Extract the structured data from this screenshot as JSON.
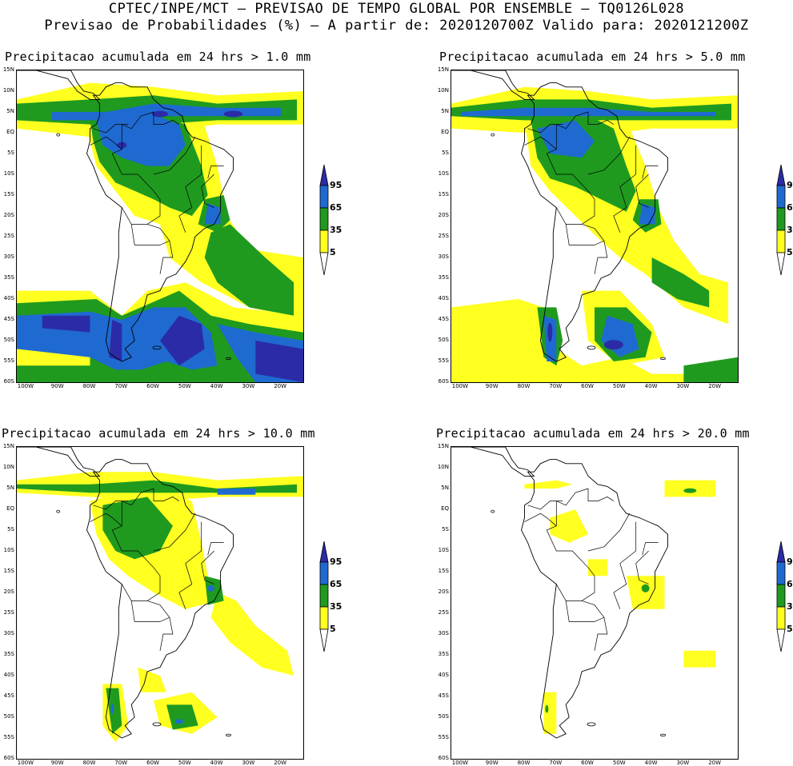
{
  "header": {
    "line1": "CPTEC/INPE/MCT – PREVISAO DE TEMPO GLOBAL POR ENSEMBLE – TQ0126L028",
    "line2": "Previsao de Probabilidades (%) –  A partir de: 2020120700Z  Valido para: 2020121200Z"
  },
  "axes": {
    "lat_labels": [
      "15N",
      "10N",
      "5N",
      "EQ",
      "5S",
      "10S",
      "15S",
      "20S",
      "25S",
      "30S",
      "35S",
      "40S",
      "45S",
      "50S",
      "55S",
      "60S"
    ],
    "lon_labels": [
      "100W",
      "90W",
      "80W",
      "70W",
      "60W",
      "50W",
      "40W",
      "30W",
      "20W"
    ]
  },
  "colorbar": {
    "levels": [
      "95",
      "65",
      "35",
      "5"
    ],
    "colors": [
      "#2b2ba8",
      "#1f6ad0",
      "#1f9a1f",
      "#ffff20"
    ]
  },
  "panels": [
    {
      "title": "Precipitacao acumulada em 24 hrs > 1.0 mm"
    },
    {
      "title": "Precipitacao acumulada em 24 hrs > 5.0 mm"
    },
    {
      "title": "Precipitacao acumulada em 24 hrs > 10.0 mm"
    },
    {
      "title": "Precipitacao acumulada em 24 hrs > 20.0 mm"
    }
  ]
}
